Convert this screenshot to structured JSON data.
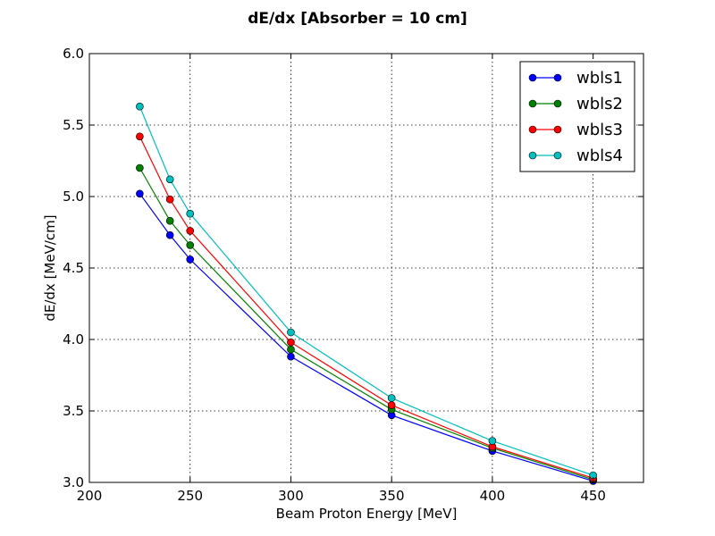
{
  "chart_data": {
    "type": "line",
    "title": "dE/dx [Absorber = 10 cm]",
    "xlabel": "Beam Proton Energy [MeV]",
    "ylabel": "dE/dx [MeV/cm]",
    "xlim": [
      200,
      475
    ],
    "ylim": [
      3.0,
      6.0
    ],
    "x_ticks": [
      200,
      250,
      300,
      350,
      400,
      450
    ],
    "y_ticks": [
      3.0,
      3.5,
      4.0,
      4.5,
      5.0,
      5.5,
      6.0
    ],
    "x_tick_labels": [
      "200",
      "250",
      "300",
      "350",
      "400",
      "450"
    ],
    "y_tick_labels": [
      "3.0",
      "3.5",
      "4.0",
      "4.5",
      "5.0",
      "5.5",
      "6.0"
    ],
    "grid": true,
    "legend_position": "top-right",
    "x": [
      225,
      240,
      250,
      300,
      350,
      400,
      450
    ],
    "series": [
      {
        "name": "wbls1",
        "color": "#0000ff",
        "values": [
          5.02,
          4.73,
          4.56,
          3.88,
          3.47,
          3.22,
          3.01
        ]
      },
      {
        "name": "wbls2",
        "color": "#008000",
        "values": [
          5.2,
          4.83,
          4.66,
          3.93,
          3.51,
          3.24,
          3.02
        ]
      },
      {
        "name": "wbls3",
        "color": "#ff0000",
        "values": [
          5.42,
          4.98,
          4.76,
          3.98,
          3.54,
          3.25,
          3.03
        ]
      },
      {
        "name": "wbls4",
        "color": "#00bfbf",
        "values": [
          5.63,
          5.12,
          4.88,
          4.05,
          3.59,
          3.29,
          3.05
        ]
      }
    ]
  }
}
